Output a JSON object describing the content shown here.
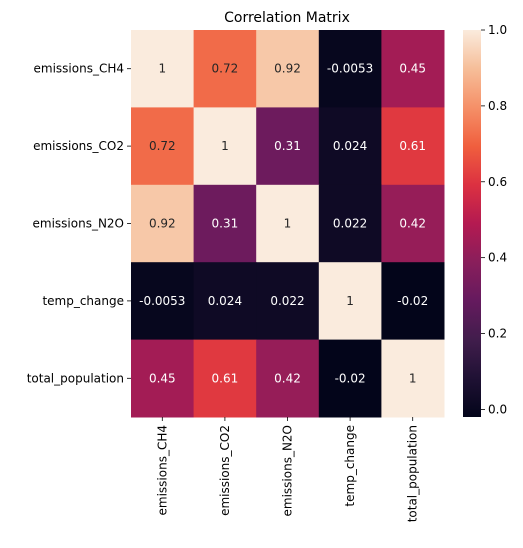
{
  "chart_data": {
    "type": "heatmap",
    "title": "Correlation Matrix",
    "row_labels": [
      "emissions_CH4",
      "emissions_CO2",
      "emissions_N2O",
      "temp_change",
      "total_population"
    ],
    "col_labels": [
      "emissions_CH4",
      "emissions_CO2",
      "emissions_N2O",
      "temp_change",
      "total_population"
    ],
    "values": [
      [
        1,
        0.72,
        0.92,
        -0.0053,
        0.45
      ],
      [
        0.72,
        1,
        0.31,
        0.024,
        0.61
      ],
      [
        0.92,
        0.31,
        1,
        0.022,
        0.42
      ],
      [
        -0.0053,
        0.024,
        0.022,
        1,
        -0.02
      ],
      [
        0.45,
        0.61,
        0.42,
        -0.02,
        1
      ]
    ],
    "annotations": [
      [
        "1",
        "0.72",
        "0.92",
        "-0.0053",
        "0.45"
      ],
      [
        "0.72",
        "1",
        "0.31",
        "0.024",
        "0.61"
      ],
      [
        "0.92",
        "0.31",
        "1",
        "0.022",
        "0.42"
      ],
      [
        "-0.0053",
        "0.024",
        "0.022",
        "1",
        "-0.02"
      ],
      [
        "0.45",
        "0.61",
        "0.42",
        "-0.02",
        "1"
      ]
    ],
    "colorbar": {
      "range": [
        -0.02,
        1.0
      ],
      "ticks": [
        0.0,
        0.2,
        0.4,
        0.6,
        0.8,
        1.0
      ],
      "tick_labels": [
        "0.0",
        "0.2",
        "0.4",
        "0.6",
        "0.8",
        "1.0"
      ],
      "colormap": "rocket"
    }
  }
}
